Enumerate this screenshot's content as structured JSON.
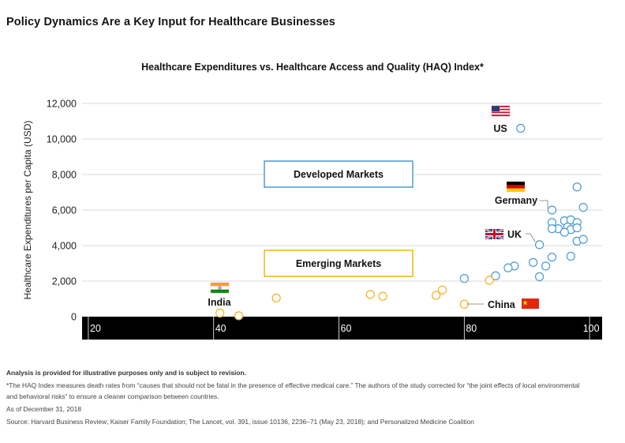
{
  "page_title": "Policy Dynamics Are a Key Input for Healthcare Businesses",
  "chart_data": {
    "type": "scatter",
    "title": "Healthcare Expenditures vs. Healthcare Access and Quality (HAQ) Index*",
    "xlabel": "",
    "ylabel": "Healthcare Expenditures per Capita (USD)",
    "xlim": [
      19,
      102
    ],
    "ylim": [
      0,
      12000
    ],
    "x_ticks": [
      20,
      40,
      60,
      80,
      100
    ],
    "x_tick_labels": [
      "20",
      "40",
      "60",
      "80",
      "100"
    ],
    "y_ticks": [
      0,
      2000,
      4000,
      6000,
      8000,
      10000,
      12000
    ],
    "y_tick_labels": [
      "0",
      "2,000",
      "4,000",
      "6,000",
      "8,000",
      "10,000",
      "12,000"
    ],
    "grid": "horizontal",
    "colors": {
      "developed": "#4a9bd6",
      "emerging": "#f2b21e",
      "axis_bar": "#000000",
      "grid": "#d9d9d9"
    },
    "series": [
      {
        "name": "Developed Markets",
        "color": "#4a9bd6",
        "points": [
          {
            "x": 89,
            "y": 10600
          },
          {
            "x": 98,
            "y": 7300
          },
          {
            "x": 94,
            "y": 6000
          },
          {
            "x": 99,
            "y": 6150
          },
          {
            "x": 96,
            "y": 5400
          },
          {
            "x": 97,
            "y": 5450
          },
          {
            "x": 98,
            "y": 5300
          },
          {
            "x": 94,
            "y": 5300
          },
          {
            "x": 95,
            "y": 4950
          },
          {
            "x": 94,
            "y": 4950
          },
          {
            "x": 96.5,
            "y": 5050
          },
          {
            "x": 97,
            "y": 4900
          },
          {
            "x": 98,
            "y": 5000
          },
          {
            "x": 96,
            "y": 4750
          },
          {
            "x": 98,
            "y": 4250
          },
          {
            "x": 99,
            "y": 4350
          },
          {
            "x": 92,
            "y": 4050
          },
          {
            "x": 94,
            "y": 3350
          },
          {
            "x": 97,
            "y": 3400
          },
          {
            "x": 91,
            "y": 3050
          },
          {
            "x": 93,
            "y": 2850
          },
          {
            "x": 88,
            "y": 2850
          },
          {
            "x": 87,
            "y": 2750
          },
          {
            "x": 85,
            "y": 2300
          },
          {
            "x": 92,
            "y": 2250
          },
          {
            "x": 80,
            "y": 2150
          }
        ]
      },
      {
        "name": "Emerging Markets",
        "color": "#f2b21e",
        "points": [
          {
            "x": 41,
            "y": 200
          },
          {
            "x": 44,
            "y": 50
          },
          {
            "x": 50,
            "y": 1050
          },
          {
            "x": 65,
            "y": 1250
          },
          {
            "x": 67,
            "y": 1150
          },
          {
            "x": 75.5,
            "y": 1200
          },
          {
            "x": 76.5,
            "y": 1500
          },
          {
            "x": 84,
            "y": 2050
          },
          {
            "x": 80,
            "y": 700
          }
        ]
      }
    ],
    "annotations": [
      {
        "label": "US",
        "x": 89,
        "y": 10600
      },
      {
        "label": "Germany",
        "x": 94,
        "y": 6000
      },
      {
        "label": "UK",
        "x": 92,
        "y": 4050
      },
      {
        "label": "China",
        "x": 80,
        "y": 700
      },
      {
        "label": "India",
        "x": 41,
        "y": 200
      }
    ],
    "category_boxes": [
      {
        "label": "Developed Markets",
        "color": "#4a9bd6"
      },
      {
        "label": "Emerging Markets",
        "color": "#f2b21e"
      }
    ]
  },
  "footer": {
    "disclaimer": "Analysis is provided for illustrative purposes only and is subject to revision.",
    "note_1": "*The HAQ Index measures death rates from “causes that should not be fatal in the presence of effective medical care.” The authors of the study corrected for “the joint effects of local environmental",
    "note_2": "and behavioral risks” to ensure a cleaner comparison between countries.",
    "as_of": "As of December 31, 2018",
    "source": "Source: Harvard Business Review; Kaiser Family Foundation; The Lancet, vol. 391, issue 10136, 2236–71 (May 23, 2018); and Personalized Medicine Coalition"
  }
}
